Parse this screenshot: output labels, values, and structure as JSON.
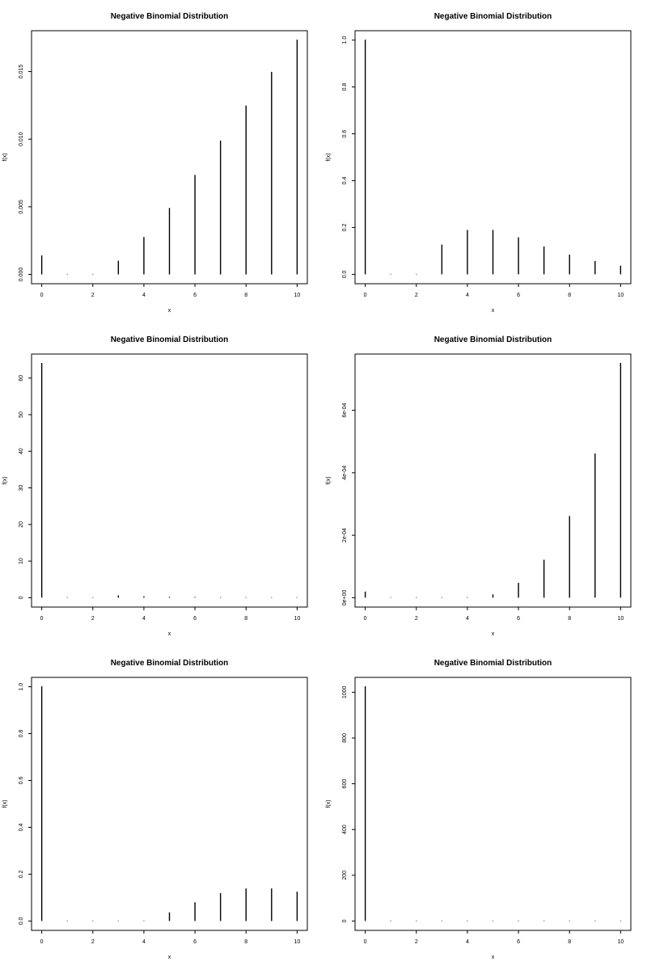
{
  "chart_data": [
    {
      "type": "bar",
      "title": "Negative Binomial Distribution",
      "xlabel": "x",
      "ylabel": "f(x)",
      "x": [
        0,
        1,
        2,
        3,
        4,
        5,
        6,
        7,
        8,
        9,
        10
      ],
      "values": [
        0.00137,
        0,
        0,
        0.00098,
        0.00273,
        0.00488,
        0.00732,
        0.00986,
        0.01245,
        0.01494,
        0.01733
      ],
      "xticks": [
        0,
        2,
        4,
        6,
        8,
        10
      ],
      "xtick_labels": [
        "0",
        "2",
        "4",
        "6",
        "8",
        "10"
      ],
      "yticks": [
        0,
        0.005,
        0.01,
        0.015
      ],
      "ytick_labels": [
        "0.000",
        "0.005",
        "0.010",
        "0.015"
      ],
      "xlim": [
        -0.4,
        10.4
      ],
      "ylim": [
        -0.00069,
        0.01802
      ]
    },
    {
      "type": "bar",
      "title": "Negative Binomial Distribution",
      "xlabel": "x",
      "ylabel": "f(x)",
      "x": [
        0,
        1,
        2,
        3,
        4,
        5,
        6,
        7,
        8,
        9,
        10
      ],
      "values": [
        1.0,
        0,
        0,
        0.125,
        0.1875,
        0.1875,
        0.15625,
        0.117,
        0.082,
        0.055,
        0.035
      ],
      "xticks": [
        0,
        2,
        4,
        6,
        8,
        10
      ],
      "xtick_labels": [
        "0",
        "2",
        "4",
        "6",
        "8",
        "10"
      ],
      "yticks": [
        0,
        0.2,
        0.4,
        0.6,
        0.8,
        1.0
      ],
      "ytick_labels": [
        "0.0",
        "0.2",
        "0.4",
        "0.6",
        "0.8",
        "1.0"
      ],
      "xlim": [
        -0.4,
        10.4
      ],
      "ylim": [
        -0.04,
        1.04
      ]
    },
    {
      "type": "bar",
      "title": "Negative Binomial Distribution",
      "xlabel": "x",
      "ylabel": "f(x)",
      "x": [
        0,
        1,
        2,
        3,
        4,
        5,
        6,
        7,
        8,
        9,
        10
      ],
      "values": [
        64,
        0,
        0,
        0.5,
        0.25,
        0.1,
        0.05,
        0,
        0,
        0,
        0
      ],
      "xticks": [
        0,
        2,
        4,
        6,
        8,
        10
      ],
      "xtick_labels": [
        "0",
        "2",
        "4",
        "6",
        "8",
        "10"
      ],
      "yticks": [
        0,
        10,
        20,
        30,
        40,
        50,
        60
      ],
      "ytick_labels": [
        "0",
        "10",
        "20",
        "30",
        "40",
        "50",
        "60"
      ],
      "xlim": [
        -0.4,
        10.4
      ],
      "ylim": [
        -2.56,
        66.56
      ]
    },
    {
      "type": "bar",
      "title": "Negative Binomial Distribution",
      "xlabel": "x",
      "ylabel": "f(x)",
      "x": [
        0,
        1,
        2,
        3,
        4,
        5,
        6,
        7,
        8,
        9,
        10
      ],
      "values": [
        1.8e-05,
        0,
        0,
        0,
        0,
        9e-06,
        4.6e-05,
        0.00012,
        0.00026,
        0.00046,
        0.00075
      ],
      "xticks": [
        0,
        2,
        4,
        6,
        8,
        10
      ],
      "xtick_labels": [
        "0",
        "2",
        "4",
        "6",
        "8",
        "10"
      ],
      "yticks": [
        0,
        0.0002,
        0.0004,
        0.0006
      ],
      "ytick_labels": [
        "0e+00",
        "2e-04",
        "4e-04",
        "6e-04"
      ],
      "xlim": [
        -0.4,
        10.4
      ],
      "ylim": [
        -3e-05,
        0.00078
      ]
    },
    {
      "type": "bar",
      "title": "Negative Binomial Distribution",
      "xlabel": "x",
      "ylabel": "f(x)",
      "x": [
        0,
        1,
        2,
        3,
        4,
        5,
        6,
        7,
        8,
        9,
        10
      ],
      "values": [
        1.0,
        0,
        0,
        0,
        0,
        0.035,
        0.078,
        0.117,
        0.137,
        0.137,
        0.123
      ],
      "xticks": [
        0,
        2,
        4,
        6,
        8,
        10
      ],
      "xtick_labels": [
        "0",
        "2",
        "4",
        "6",
        "8",
        "10"
      ],
      "yticks": [
        0,
        0.2,
        0.4,
        0.6,
        0.8,
        1.0
      ],
      "ytick_labels": [
        "0.0",
        "0.2",
        "0.4",
        "0.6",
        "0.8",
        "1.0"
      ],
      "xlim": [
        -0.4,
        10.4
      ],
      "ylim": [
        -0.04,
        1.04
      ]
    },
    {
      "type": "bar",
      "title": "Negative Binomial Distribution",
      "xlabel": "x",
      "ylabel": "f(x)",
      "x": [
        0,
        1,
        2,
        3,
        4,
        5,
        6,
        7,
        8,
        9,
        10
      ],
      "values": [
        1024,
        0,
        0,
        0,
        0,
        0,
        0,
        0,
        0,
        0,
        0
      ],
      "xticks": [
        0,
        2,
        4,
        6,
        8,
        10
      ],
      "xtick_labels": [
        "0",
        "2",
        "4",
        "6",
        "8",
        "10"
      ],
      "yticks": [
        0,
        200,
        400,
        600,
        800,
        1000
      ],
      "ytick_labels": [
        "0",
        "200",
        "400",
        "600",
        "800",
        "1000"
      ],
      "xlim": [
        -0.4,
        10.4
      ],
      "ylim": [
        -40.96,
        1064.96
      ]
    }
  ]
}
